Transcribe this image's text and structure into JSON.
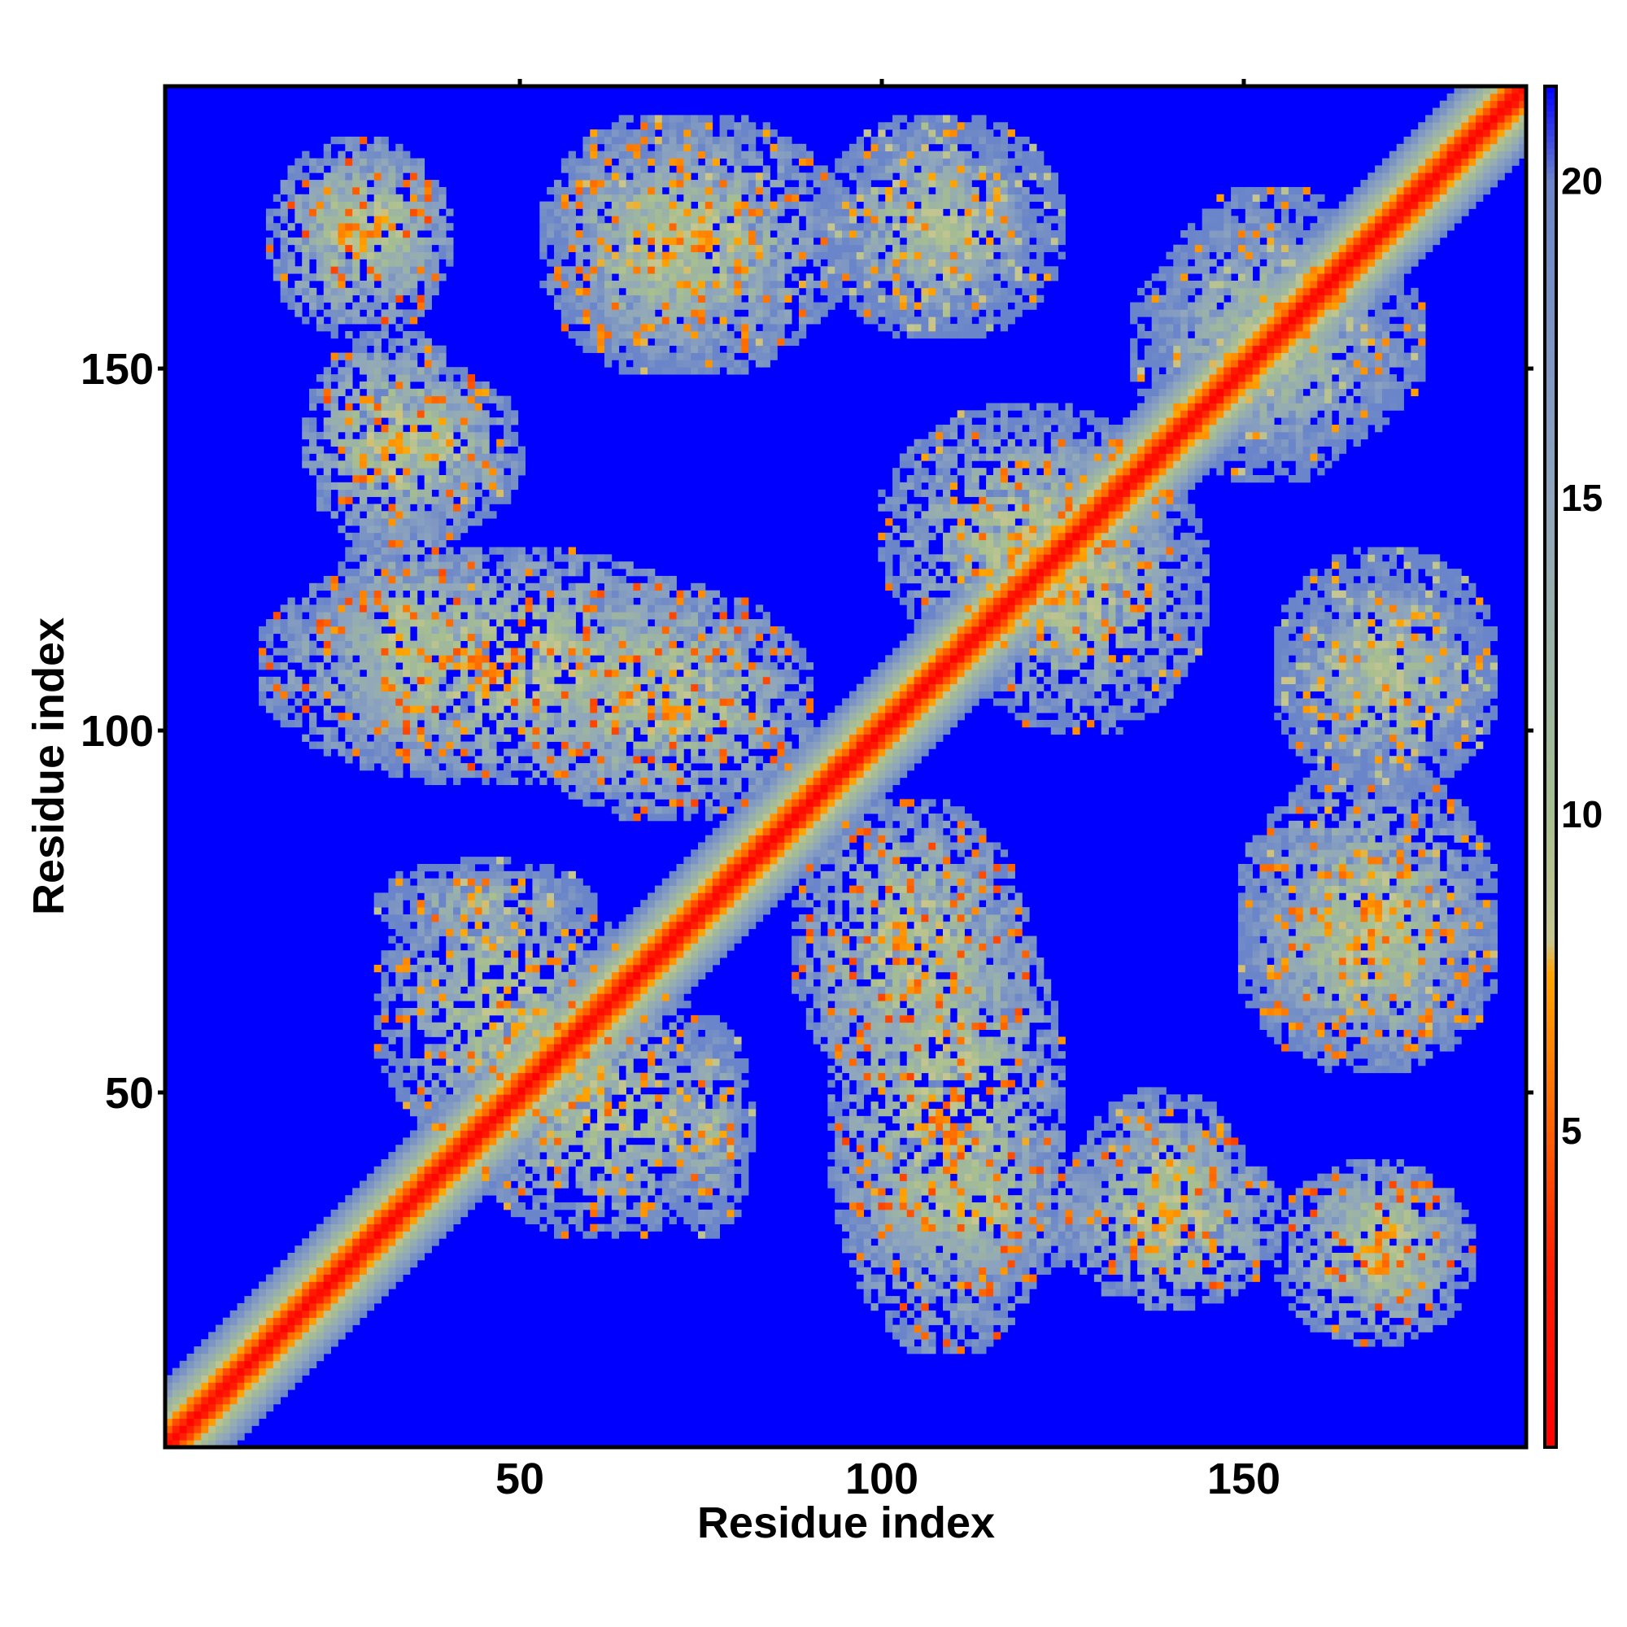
{
  "chart_data": {
    "type": "heatmap",
    "title": "",
    "xlabel": "Residue index",
    "ylabel": "Residue index",
    "n_residues": 189,
    "xlim": [
      1,
      189
    ],
    "ylim": [
      1,
      189
    ],
    "x_ticks": [
      50,
      100,
      150
    ],
    "y_ticks": [
      50,
      100,
      150
    ],
    "colorbar": {
      "range": [
        0,
        21.5
      ],
      "ticks": [
        5,
        10,
        15,
        20
      ],
      "cap_value": 21.5,
      "colorscale": [
        {
          "value": 0,
          "color": "#ff0000"
        },
        {
          "value": 3,
          "color": "#ff2000"
        },
        {
          "value": 5,
          "color": "#ff6000"
        },
        {
          "value": 7.5,
          "color": "#ffa500"
        },
        {
          "value": 8,
          "color": "#c8c690"
        },
        {
          "value": 10,
          "color": "#a7bf8f"
        },
        {
          "value": 15,
          "color": "#8fa6bd"
        },
        {
          "value": 20,
          "color": "#6a85c9"
        },
        {
          "value": 21.5,
          "color": "#0000ff"
        }
      ]
    },
    "background_value": 21.5,
    "diagonal_band": {
      "value_on_diagonal": 0,
      "half_width_residues": 9
    },
    "contact_regions": [
      {
        "i": [
          15,
          40
        ],
        "j": [
          155,
          182
        ],
        "min_distance": 4
      },
      {
        "i": [
          53,
          85
        ],
        "j": [
          150,
          185
        ],
        "min_distance": 5
      },
      {
        "i": [
          92,
          120
        ],
        "j": [
          155,
          185
        ],
        "min_distance": 6
      },
      {
        "i": [
          27,
          50
        ],
        "j": [
          128,
          150
        ],
        "min_distance": 5
      },
      {
        "i": [
          14,
          80
        ],
        "j": [
          93,
          125
        ],
        "min_distance": 4
      },
      {
        "i": [
          30,
          60
        ],
        "j": [
          70,
          82
        ],
        "min_distance": 7
      },
      {
        "i": [
          42,
          80
        ],
        "j": [
          30,
          65
        ],
        "min_distance": 5
      },
      {
        "i": [
          88,
          120
        ],
        "j": [
          50,
          90
        ],
        "min_distance": 4
      },
      {
        "i": [
          95,
          130
        ],
        "j": [
          23,
          45
        ],
        "min_distance": 5
      },
      {
        "i": [
          125,
          155
        ],
        "j": [
          20,
          45
        ],
        "min_distance": 4
      },
      {
        "i": [
          160,
          180
        ],
        "j": [
          20,
          40
        ],
        "min_distance": 4
      },
      {
        "i": [
          150,
          185
        ],
        "j": [
          55,
          95
        ],
        "min_distance": 5
      },
      {
        "i": [
          155,
          185
        ],
        "j": [
          95,
          125
        ],
        "min_distance": 7
      },
      {
        "i": [
          100,
          140
        ],
        "j": [
          110,
          145
        ],
        "min_distance": 5
      },
      {
        "i": [
          135,
          175
        ],
        "j": [
          138,
          170
        ],
        "min_distance": 6
      }
    ]
  }
}
